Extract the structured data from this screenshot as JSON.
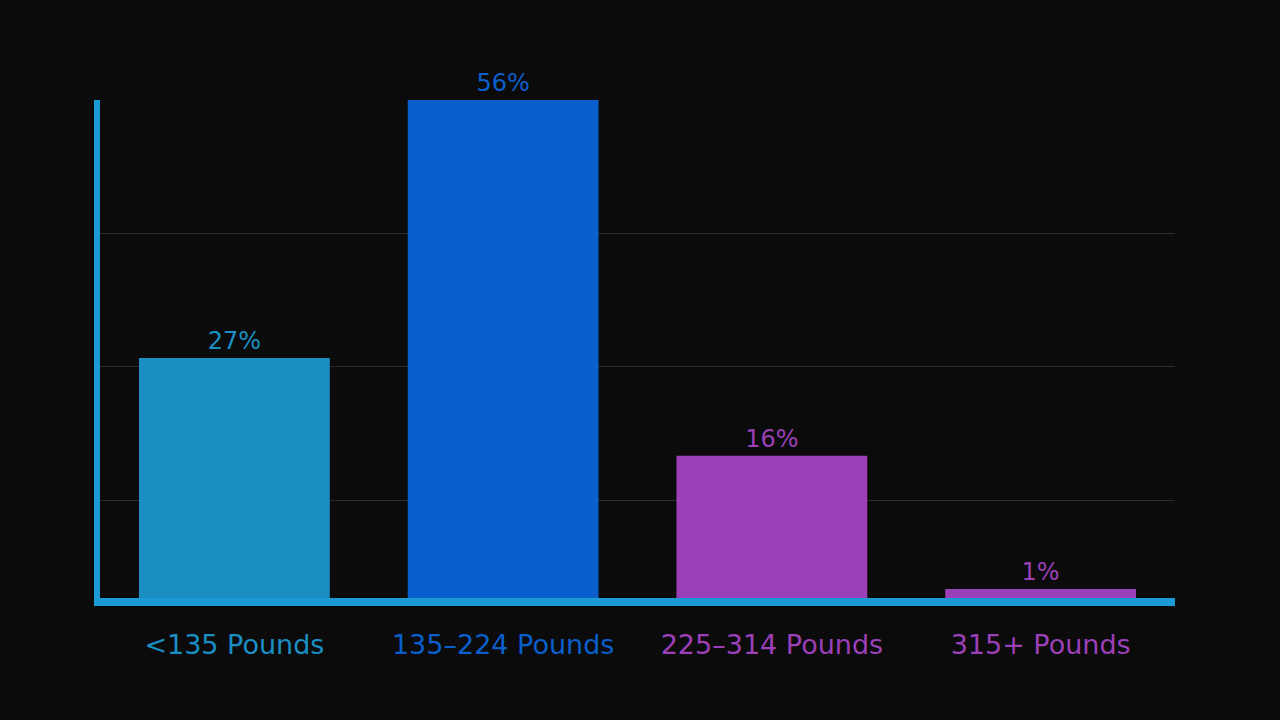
{
  "chart_data": {
    "type": "bar",
    "categories": [
      "<135 Pounds",
      "135–224 Pounds",
      "225–314 Pounds",
      "315+ Pounds"
    ],
    "values": [
      27,
      56,
      16,
      1
    ],
    "value_labels": [
      "27%",
      "56%",
      "16%",
      "1%"
    ],
    "colors": [
      "#1b8fc4",
      "#0a5fcc",
      "#9b40b8",
      "#9b40b8"
    ],
    "ylim": [
      0,
      56
    ],
    "yticks": [
      11,
      26,
      41,
      56
    ],
    "grid": true,
    "data_labels": true,
    "tick_labels": "x"
  }
}
